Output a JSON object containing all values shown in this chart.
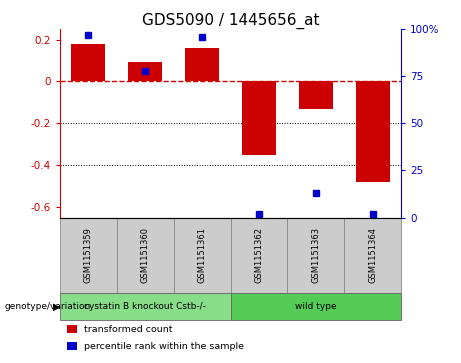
{
  "title": "GDS5090 / 1445656_at",
  "categories": [
    "GSM1151359",
    "GSM1151360",
    "GSM1151361",
    "GSM1151362",
    "GSM1151363",
    "GSM1151364"
  ],
  "red_values": [
    0.18,
    0.095,
    0.16,
    -0.35,
    -0.13,
    -0.48
  ],
  "blue_percentiles": [
    97,
    78,
    96,
    2,
    13,
    2
  ],
  "left_ylim": [
    -0.65,
    0.25
  ],
  "right_ylim": [
    0,
    100
  ],
  "left_yticks": [
    -0.6,
    -0.4,
    -0.2,
    0.0,
    0.2
  ],
  "right_yticks": [
    0,
    25,
    50,
    75,
    100
  ],
  "right_yticklabels": [
    "0",
    "25",
    "50",
    "75",
    "100%"
  ],
  "bar_color": "#cc0000",
  "dot_color": "#0000cc",
  "zero_line_color": "#cc0000",
  "groups": [
    {
      "label": "cystatin B knockout Cstb-/-",
      "indices": [
        0,
        1,
        2
      ],
      "color": "#88dd88"
    },
    {
      "label": "wild type",
      "indices": [
        3,
        4,
        5
      ],
      "color": "#55cc55"
    }
  ],
  "group_row_label": "genotype/variation",
  "legend_items": [
    {
      "color": "#cc0000",
      "label": "transformed count"
    },
    {
      "color": "#0000cc",
      "label": "percentile rank within the sample"
    }
  ],
  "bar_width": 0.6,
  "background_color": "#ffffff",
  "title_fontsize": 11,
  "tick_fontsize": 7.5,
  "label_fontsize": 7,
  "sample_box_color": "#cccccc",
  "sample_box_edge": "#888888"
}
